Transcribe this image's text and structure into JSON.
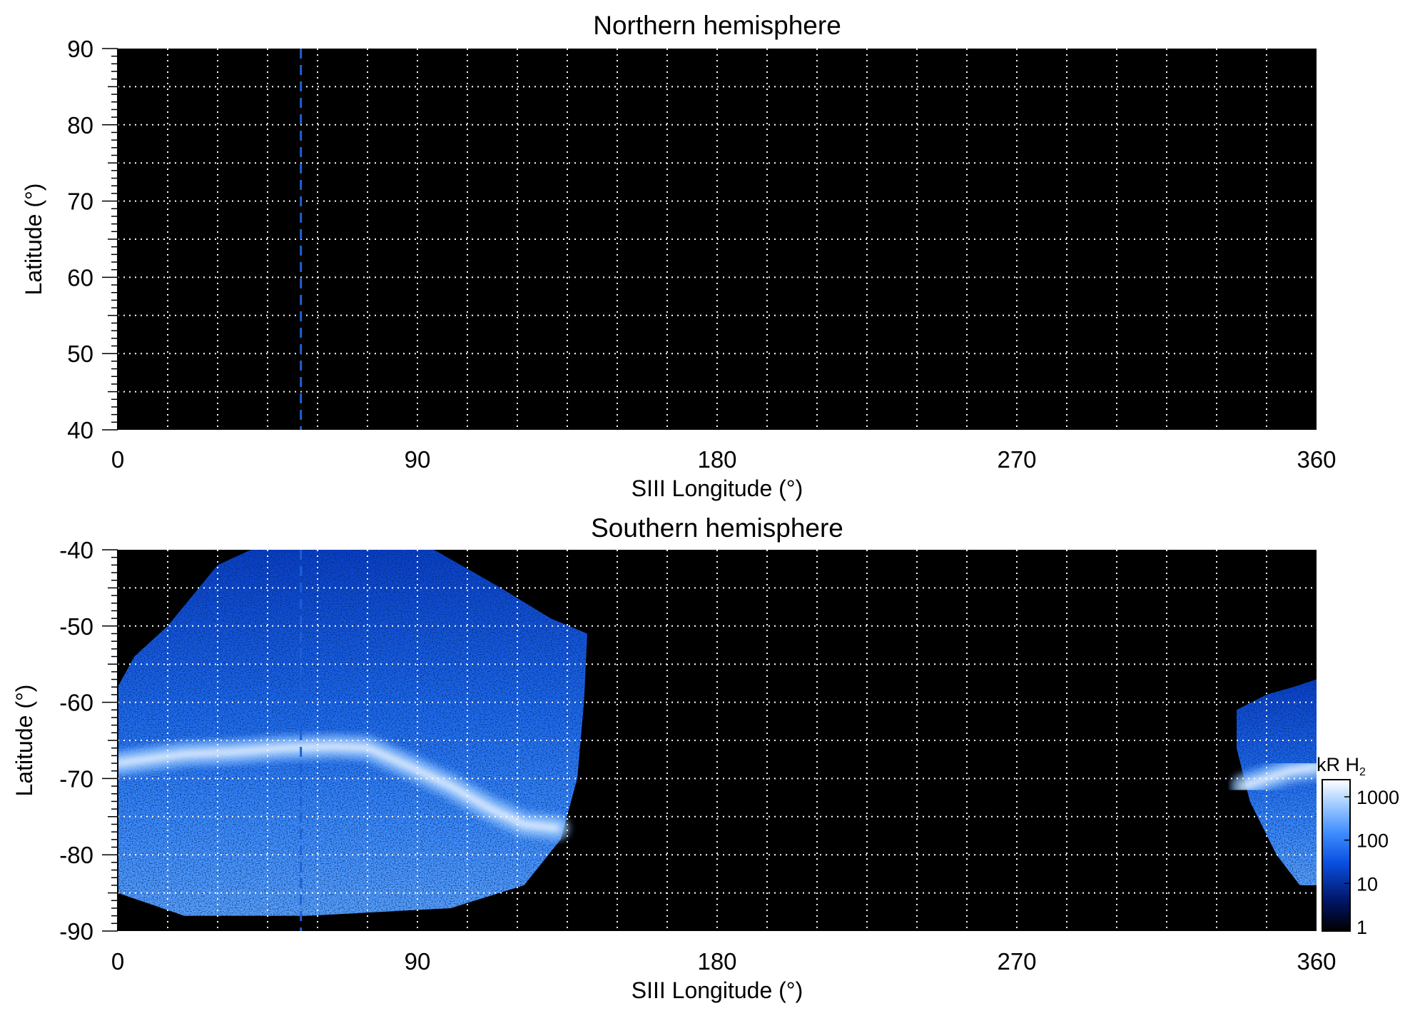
{
  "chart_data": [
    {
      "type": "heatmap",
      "title": "Northern hemisphere",
      "xlabel": "SIII Longitude (°)",
      "ylabel": "Latitude (°)",
      "xlim": [
        0,
        360
      ],
      "ylim": [
        40,
        90
      ],
      "xticks": [
        0,
        90,
        180,
        270,
        360
      ],
      "yticks": [
        40,
        50,
        60,
        70,
        80,
        90
      ],
      "grid": {
        "on": true,
        "style": "dotted",
        "color": "#ffffff",
        "x_step": 15,
        "y_step": 5
      },
      "reference_line": {
        "x": 55,
        "style": "dashed",
        "color": "#1f5fd6"
      },
      "background": "#000000",
      "emission": []
    },
    {
      "type": "heatmap",
      "title": "Southern hemisphere",
      "xlabel": "SIII Longitude (°)",
      "ylabel": "Latitude (°)",
      "xlim": [
        0,
        360
      ],
      "ylim": [
        -90,
        -40
      ],
      "xticks": [
        0,
        90,
        180,
        270,
        360
      ],
      "yticks": [
        -90,
        -80,
        -70,
        -60,
        -50,
        -40
      ],
      "grid": {
        "on": true,
        "style": "dotted",
        "color": "#ffffff",
        "x_step": 15,
        "y_step": 5
      },
      "reference_line": {
        "x": 55,
        "style": "dashed",
        "color": "#1f5fd6"
      },
      "background": "#000000",
      "emission": [
        {
          "region": "main",
          "boundary": [
            [
              0,
              -58
            ],
            [
              5,
              -54
            ],
            [
              15,
              -50
            ],
            [
              30,
              -42
            ],
            [
              40,
              -40
            ],
            [
              57,
              -40
            ],
            [
              66,
              -40
            ],
            [
              95,
              -40
            ],
            [
              115,
              -45
            ],
            [
              130,
              -49
            ],
            [
              141,
              -51
            ],
            [
              140,
              -60
            ],
            [
              138,
              -70
            ],
            [
              133,
              -78
            ],
            [
              122,
              -84
            ],
            [
              100,
              -87
            ],
            [
              57,
              -88
            ],
            [
              20,
              -88
            ],
            [
              0,
              -85
            ]
          ],
          "oval": {
            "points": [
              [
                0,
                -68
              ],
              [
                8,
                -67.5
              ],
              [
                20,
                -66.8
              ],
              [
                35,
                -66.5
              ],
              [
                50,
                -66
              ],
              [
                65,
                -65.8
              ],
              [
                75,
                -66
              ],
              [
                88,
                -68.5
              ],
              [
                100,
                -71
              ],
              [
                112,
                -74
              ],
              [
                122,
                -76
              ],
              [
                132,
                -76.5
              ]
            ],
            "brightness_kR": 1000
          },
          "typical_kR": 100
        },
        {
          "region": "wrap",
          "boundary": [
            [
              336,
              -61
            ],
            [
              345,
              -59
            ],
            [
              353,
              -58
            ],
            [
              360,
              -57
            ],
            [
              360,
              -84
            ],
            [
              355,
              -84
            ],
            [
              348,
              -80
            ],
            [
              340,
              -73
            ],
            [
              336,
              -66
            ]
          ],
          "oval": {
            "points": [
              [
                338,
                -71
              ],
              [
                345,
                -70
              ],
              [
                352,
                -69
              ],
              [
                360,
                -68.5
              ]
            ],
            "brightness_kR": 1000
          },
          "typical_kR": 100
        }
      ],
      "colorbar": {
        "label": "kR H",
        "label_subscript": "2",
        "scale": "log",
        "ticks": [
          1,
          10,
          100,
          1000
        ],
        "tick_labels": [
          "1",
          "10",
          "100",
          "1000"
        ],
        "colors": [
          "#000000",
          "#001566",
          "#0a4fe0",
          "#3f8dff",
          "#a8d0ff",
          "#ffffff"
        ]
      }
    }
  ]
}
